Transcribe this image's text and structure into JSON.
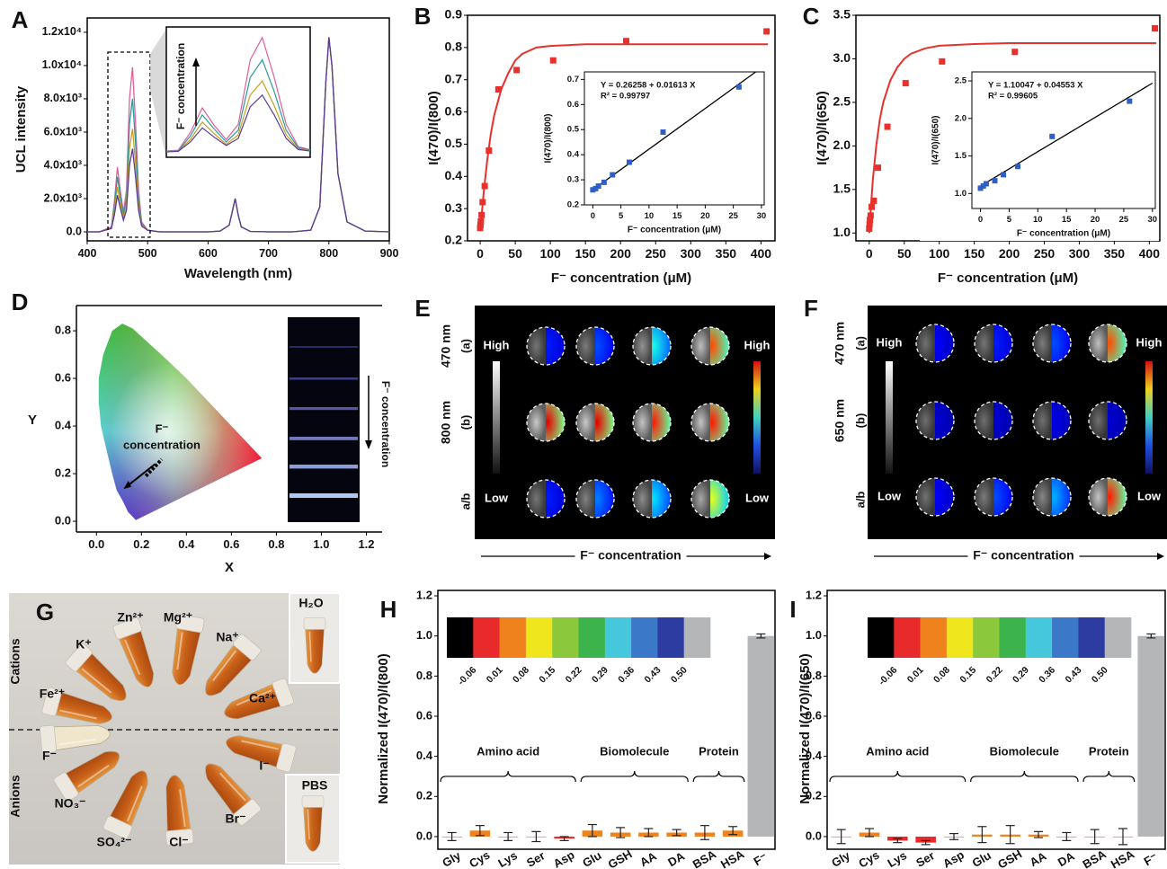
{
  "chart_data": [
    {
      "type": "line",
      "panel": "A",
      "xlabel": "Wavelength (nm)",
      "ylabel": "UCL intensity",
      "xlim": [
        400,
        900
      ],
      "ylim": [
        -540,
        12860
      ],
      "xticks": [
        400,
        500,
        600,
        700,
        800,
        900
      ],
      "yticks": [
        {
          "value": 0,
          "label": "0.0"
        },
        {
          "value": 2000,
          "label": "2.0x10³"
        },
        {
          "value": 4000,
          "label": "4.0x10³"
        },
        {
          "value": 6000,
          "label": "6.0x10³"
        },
        {
          "value": 8000,
          "label": "8.0x10³"
        },
        {
          "value": 10000,
          "label": "1.0x10⁴"
        },
        {
          "value": 12000,
          "label": "1.2x10⁴"
        }
      ],
      "x": [
        400,
        420,
        440,
        445,
        450,
        455,
        460,
        465,
        470,
        475,
        480,
        485,
        490,
        500,
        520,
        560,
        600,
        620,
        635,
        640,
        645,
        650,
        655,
        670,
        700,
        740,
        770,
        785,
        795,
        800,
        805,
        815,
        830,
        860,
        900
      ],
      "series": [
        {
          "color": "#e0609a",
          "values": [
            0,
            0,
            300,
            1800,
            3900,
            2400,
            1200,
            2500,
            8000,
            9900,
            6500,
            2500,
            600,
            100,
            0,
            0,
            0,
            50,
            400,
            1200,
            2000,
            1000,
            300,
            30,
            0,
            0,
            100,
            1500,
            9000,
            11700,
            10000,
            3500,
            600,
            50,
            0
          ]
        },
        {
          "color": "#2a9a9a",
          "values": [
            0,
            0,
            250,
            1500,
            3300,
            2100,
            1000,
            2000,
            6500,
            8000,
            5300,
            2000,
            500,
            100,
            0,
            0,
            0,
            50,
            400,
            1200,
            2000,
            1000,
            300,
            30,
            0,
            0,
            100,
            1500,
            9000,
            11700,
            10000,
            3500,
            600,
            50,
            0
          ]
        },
        {
          "color": "#c8a020",
          "values": [
            0,
            0,
            220,
            1200,
            2700,
            1700,
            800,
            1600,
            5000,
            6200,
            4100,
            1600,
            400,
            100,
            0,
            0,
            0,
            50,
            400,
            1200,
            2000,
            1000,
            300,
            30,
            0,
            0,
            100,
            1500,
            9000,
            11700,
            10000,
            3500,
            600,
            50,
            0
          ]
        },
        {
          "color": "#5a3a9a",
          "values": [
            0,
            0,
            200,
            1000,
            2200,
            1400,
            700,
            1300,
            4000,
            5000,
            3300,
            1300,
            350,
            100,
            0,
            0,
            0,
            50,
            400,
            1200,
            2000,
            1000,
            300,
            30,
            0,
            0,
            100,
            1500,
            9000,
            11700,
            10000,
            3500,
            600,
            50,
            0
          ]
        }
      ],
      "inset": {
        "xlim": [
          435,
          495
        ],
        "ylim": [
          0,
          10500
        ],
        "annotation": "F⁻ concentration"
      }
    },
    {
      "type": "scatter",
      "panel": "B",
      "xlabel": "F⁻ concentration (μM)",
      "ylabel": "I(470)/I(800)",
      "xlim": [
        -18,
        420
      ],
      "ylim": [
        0.2,
        0.9
      ],
      "xticks": [
        0,
        50,
        100,
        150,
        200,
        250,
        300,
        350,
        400
      ],
      "yticks": [
        0.2,
        0.3,
        0.4,
        0.5,
        0.6,
        0.7,
        0.8,
        0.9
      ],
      "series": [
        {
          "color": "#e8312c",
          "mode": "markers",
          "x": [
            0,
            0.5,
            1,
            2,
            3.5,
            6.5,
            12.5,
            26,
            52,
            104,
            208,
            408
          ],
          "values": [
            0.24,
            0.25,
            0.26,
            0.28,
            0.32,
            0.37,
            0.48,
            0.67,
            0.73,
            0.76,
            0.82,
            0.85
          ]
        },
        {
          "color": "#e8312c",
          "mode": "line",
          "x": [
            0,
            5,
            10,
            15,
            20,
            30,
            40,
            50,
            60,
            80,
            100,
            150,
            200,
            300,
            410
          ],
          "values": [
            0.23,
            0.35,
            0.45,
            0.53,
            0.59,
            0.67,
            0.72,
            0.76,
            0.78,
            0.8,
            0.805,
            0.81,
            0.81,
            0.81,
            0.81
          ]
        }
      ],
      "inset": {
        "xlabel": "F⁻ concentration (μM)",
        "ylabel": "I(470)/I(800)",
        "equation": "Y = 0.26258 + 0.01613 X",
        "r2": "R² = 0.99797",
        "xlim": [
          -1.5,
          30.5
        ],
        "ylim": [
          0.2,
          0.73
        ],
        "xticks": [
          0,
          5,
          10,
          15,
          20,
          25,
          30
        ],
        "yticks": [
          0.2,
          0.3,
          0.4,
          0.5,
          0.6,
          0.7
        ],
        "series": [
          {
            "color": "#2f5fc4",
            "mode": "markers",
            "x": [
              0,
              0.5,
              1,
              2,
              3.5,
              6.5,
              12.5,
              26
            ],
            "values": [
              0.26,
              0.265,
              0.275,
              0.29,
              0.32,
              0.37,
              0.49,
              0.67
            ]
          },
          {
            "color": "#000000",
            "mode": "line",
            "x": [
              0,
              29
            ],
            "values": [
              0.26,
              0.73
            ]
          }
        ]
      }
    },
    {
      "type": "scatter",
      "panel": "C",
      "xlabel": "F⁻ concentration (μM)",
      "ylabel": "I(470)/I(650)",
      "xlim": [
        -19,
        415
      ],
      "ylim": [
        0.91,
        3.5
      ],
      "xticks": [
        0,
        50,
        100,
        150,
        200,
        250,
        300,
        350,
        400
      ],
      "yticks": [
        {
          "value": 1,
          "label": "1.0"
        },
        1.5,
        {
          "value": 2,
          "label": "2.0"
        },
        2.5,
        {
          "value": 3,
          "label": "3.0"
        },
        3.5
      ],
      "series": [
        {
          "color": "#e8312c",
          "mode": "markers",
          "x": [
            0,
            0.5,
            1,
            2,
            3.5,
            6.5,
            12.5,
            26,
            52,
            104,
            208,
            408
          ],
          "values": [
            1.05,
            1.1,
            1.15,
            1.2,
            1.3,
            1.37,
            1.75,
            2.22,
            2.72,
            2.97,
            3.08,
            3.35
          ]
        },
        {
          "color": "#e8312c",
          "mode": "line",
          "x": [
            0,
            5,
            10,
            15,
            20,
            30,
            40,
            50,
            60,
            80,
            100,
            150,
            200,
            300,
            410
          ],
          "values": [
            1.0,
            1.6,
            2.0,
            2.3,
            2.5,
            2.75,
            2.9,
            3.0,
            3.06,
            3.12,
            3.15,
            3.17,
            3.18,
            3.18,
            3.18
          ]
        }
      ],
      "inset": {
        "xlabel": "F⁻ concentration (μM)",
        "ylabel": "I(470)/I(650)",
        "equation": "Y = 1.10047 + 0.04553 X",
        "r2": "R² = 0.99605",
        "xlim": [
          -1.5,
          30.5
        ],
        "ylim": [
          0.8,
          2.62
        ],
        "xticks": [
          0,
          5,
          10,
          15,
          20,
          25,
          30
        ],
        "yticks": [
          {
            "value": 1,
            "label": "1.0"
          },
          1.5,
          {
            "value": 2,
            "label": "2.0"
          },
          2.5
        ],
        "series": [
          {
            "color": "#2f5fc4",
            "mode": "markers",
            "x": [
              0,
              0.5,
              1,
              2.5,
              4,
              6.5,
              12.5,
              26
            ],
            "values": [
              1.07,
              1.1,
              1.13,
              1.17,
              1.25,
              1.36,
              1.76,
              2.23
            ]
          },
          {
            "color": "#000000",
            "mode": "line",
            "x": [
              0,
              30
            ],
            "values": [
              1.1,
              2.47
            ]
          }
        ]
      }
    },
    {
      "type": "cie",
      "panel": "D",
      "xlabel": "X",
      "ylabel": "Y",
      "xlim": [
        -0.089,
        1.27
      ],
      "ylim": [
        -0.045,
        0.906
      ],
      "xticks": [
        {
          "value": 0,
          "label": "0.0"
        },
        0.2,
        0.4,
        0.6,
        0.8,
        {
          "value": 1,
          "label": "1.0"
        },
        1.2
      ],
      "yticks": [
        {
          "value": 0,
          "label": "0.0"
        },
        0.2,
        0.4,
        0.6,
        0.8
      ],
      "annotation": [
        "F⁻",
        "concentration"
      ],
      "strip_label": "F⁻ concentration"
    },
    {
      "type": "image",
      "panel": "E",
      "wavelengths": [
        "470 nm",
        "800 nm"
      ],
      "row_labels": [
        "(a)",
        "(b)",
        "a/b"
      ],
      "gray_scale": [
        "High",
        "Low"
      ],
      "color_scale": [
        "High",
        "Low"
      ],
      "xlabel": "F⁻ concentration",
      "levels": [
        [
          0.15,
          0.2,
          0.4,
          0.8
        ],
        [
          0.9,
          0.9,
          0.85,
          0.85
        ],
        [
          0.15,
          0.25,
          0.35,
          0.6
        ]
      ]
    },
    {
      "type": "image",
      "panel": "F",
      "wavelengths": [
        "470 nm",
        "650 nm"
      ],
      "row_labels": [
        "(a)",
        "(b)",
        "a/b"
      ],
      "gray_scale": [
        "High",
        "Low"
      ],
      "color_scale": [
        "High",
        "Low"
      ],
      "xlabel": "F⁻ concentration",
      "levels": [
        [
          0.12,
          0.15,
          0.2,
          0.8
        ],
        [
          0.08,
          0.08,
          0.1,
          0.08
        ],
        [
          0.12,
          0.2,
          0.3,
          0.85
        ]
      ]
    },
    {
      "type": "photo",
      "panel": "G",
      "groups": [
        "Cations",
        "Anions"
      ],
      "cations": [
        "Fe²⁺",
        "K⁺",
        "Zn²⁺",
        "Mg²⁺",
        "Na⁺",
        "Ca²⁺"
      ],
      "anions": [
        "F⁻",
        "NO₃⁻",
        "SO₄²⁻",
        "Cl⁻",
        "Br⁻",
        "I⁻"
      ],
      "insets": [
        "H₂O",
        "PBS"
      ]
    },
    {
      "type": "bar",
      "panel": "H",
      "ylabel": "Normalized I(470)/I(800)",
      "categories": [
        "Gly",
        "Cys",
        "Lys",
        "Ser",
        "Asp",
        "Glu",
        "GSH",
        "AA",
        "DA",
        "BSA",
        "HSA",
        "F⁻"
      ],
      "values": [
        0.0,
        0.03,
        0.0,
        0.0,
        -0.01,
        0.03,
        0.02,
        0.02,
        0.02,
        0.02,
        0.03,
        1.0
      ],
      "errors": [
        0.02,
        0.025,
        0.02,
        0.025,
        0.01,
        0.03,
        0.025,
        0.02,
        0.015,
        0.035,
        0.02,
        0.01
      ],
      "ylim": [
        -0.063,
        1.227
      ],
      "yticks": [
        {
          "value": 0,
          "label": "0.0"
        },
        0.2,
        0.4,
        0.6,
        0.8,
        {
          "value": 1,
          "label": "1.0"
        },
        1.2
      ],
      "groups": [
        "Amino acid",
        "Biomolecule",
        "Protein"
      ],
      "colorbar": {
        "colors": [
          "#000000",
          "#e82a2a",
          "#f0821e",
          "#f0e61e",
          "#8cc83c",
          "#3cb44b",
          "#46c8dc",
          "#3c78c8",
          "#2d3ca0",
          "#b4b6b8"
        ],
        "ticks": [
          -0.06,
          0.01,
          0.08,
          0.15,
          0.22,
          0.29,
          0.36,
          0.43,
          {
            "value": 0.5,
            "label": "0.50"
          }
        ]
      }
    },
    {
      "type": "bar",
      "panel": "I",
      "ylabel": "Normalized I(470)/I(650)",
      "categories": [
        "Gly",
        "Cys",
        "Lys",
        "Ser",
        "Asp",
        "Glu",
        "GSH",
        "AA",
        "DA",
        "BSA",
        "HSA",
        "F⁻"
      ],
      "values": [
        0.0,
        0.02,
        -0.02,
        -0.03,
        0.0,
        0.01,
        0.01,
        0.01,
        0.0,
        0.0,
        0.0,
        1.0
      ],
      "errors": [
        0.035,
        0.02,
        0.01,
        0.01,
        0.015,
        0.04,
        0.045,
        0.015,
        0.02,
        0.035,
        0.04,
        0.01
      ],
      "ylim": [
        -0.063,
        1.227
      ],
      "yticks": [
        {
          "value": 0,
          "label": "0.0"
        },
        0.2,
        0.4,
        0.6,
        0.8,
        {
          "value": 1,
          "label": "1.0"
        },
        1.2
      ],
      "groups": [
        "Amino acid",
        "Biomolecule",
        "Protein"
      ],
      "colorbar": {
        "colors": [
          "#000000",
          "#e82a2a",
          "#f0821e",
          "#f0e61e",
          "#8cc83c",
          "#3cb44b",
          "#46c8dc",
          "#3c78c8",
          "#2d3ca0",
          "#b4b6b8"
        ],
        "ticks": [
          -0.06,
          0.01,
          0.08,
          0.15,
          0.22,
          0.29,
          0.36,
          0.43,
          {
            "value": 0.5,
            "label": "0.50"
          }
        ]
      }
    }
  ]
}
